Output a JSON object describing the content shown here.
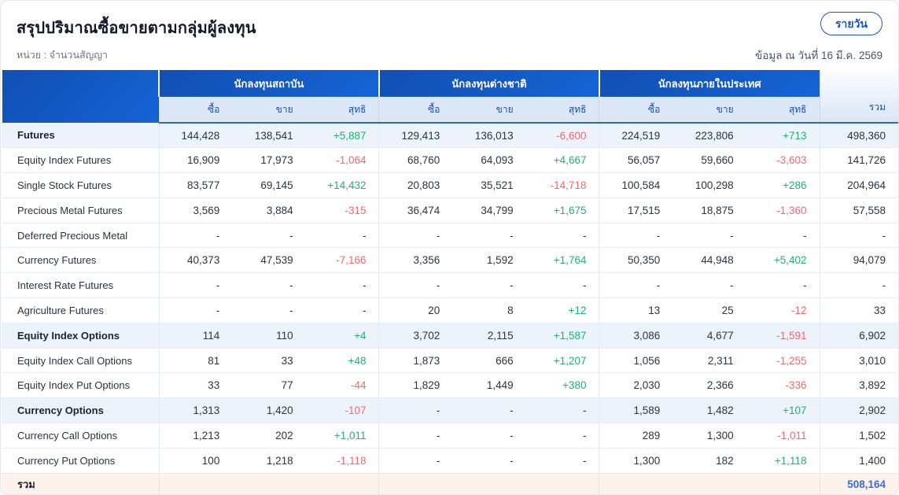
{
  "page": {
    "title": "สรุปปริมาณซื้อขายตามกลุ่มผู้ลงทุน",
    "unit_label": "หน่วย : จำนวนสัญญา",
    "as_of": "ข้อมูล ณ วันที่ 16 มี.ค. 2569",
    "period_button": "รายวัน"
  },
  "colors": {
    "header_blue": "#1258c4",
    "subheader_bg": "#dce8f7",
    "subheader_text": "#1e4fa3",
    "positive": "#21b273",
    "negative": "#f0696e",
    "highlight_row": "#edf3fb",
    "footer_bg": "#fdf3ec",
    "grand_total_text": "#3a6bd8",
    "button_blue": "#1a56c4"
  },
  "table": {
    "groups": [
      {
        "label": "นักลงทุนสถาบัน"
      },
      {
        "label": "นักลงทุนต่างชาติ"
      },
      {
        "label": "นักลงทุนภายในประเทศ"
      }
    ],
    "sub_headers": [
      "ซื้อ",
      "ขาย",
      "สุทธิ"
    ],
    "total_header": "รวม",
    "rows": [
      {
        "label": "Futures",
        "highlight": true,
        "cells": [
          "144,428",
          "138,541",
          "+5,887",
          "129,413",
          "136,013",
          "-6,600",
          "224,519",
          "223,806",
          "+713"
        ],
        "total": "498,360"
      },
      {
        "label": "Equity Index Futures",
        "highlight": false,
        "cells": [
          "16,909",
          "17,973",
          "-1,064",
          "68,760",
          "64,093",
          "+4,667",
          "56,057",
          "59,660",
          "-3,603"
        ],
        "total": "141,726"
      },
      {
        "label": "Single Stock Futures",
        "highlight": false,
        "cells": [
          "83,577",
          "69,145",
          "+14,432",
          "20,803",
          "35,521",
          "-14,718",
          "100,584",
          "100,298",
          "+286"
        ],
        "total": "204,964"
      },
      {
        "label": "Precious Metal Futures",
        "highlight": false,
        "cells": [
          "3,569",
          "3,884",
          "-315",
          "36,474",
          "34,799",
          "+1,675",
          "17,515",
          "18,875",
          "-1,360"
        ],
        "total": "57,558"
      },
      {
        "label": "Deferred Precious Metal",
        "highlight": false,
        "cells": [
          "-",
          "-",
          "-",
          "-",
          "-",
          "-",
          "-",
          "-",
          "-"
        ],
        "total": "-"
      },
      {
        "label": "Currency Futures",
        "highlight": false,
        "cells": [
          "40,373",
          "47,539",
          "-7,166",
          "3,356",
          "1,592",
          "+1,764",
          "50,350",
          "44,948",
          "+5,402"
        ],
        "total": "94,079"
      },
      {
        "label": "Interest Rate Futures",
        "highlight": false,
        "cells": [
          "-",
          "-",
          "-",
          "-",
          "-",
          "-",
          "-",
          "-",
          "-"
        ],
        "total": "-"
      },
      {
        "label": "Agriculture Futures",
        "highlight": false,
        "cells": [
          "-",
          "-",
          "-",
          "20",
          "8",
          "+12",
          "13",
          "25",
          "-12"
        ],
        "total": "33"
      },
      {
        "label": "Equity Index Options",
        "highlight": true,
        "cells": [
          "114",
          "110",
          "+4",
          "3,702",
          "2,115",
          "+1,587",
          "3,086",
          "4,677",
          "-1,591"
        ],
        "total": "6,902"
      },
      {
        "label": "Equity Index Call Options",
        "highlight": false,
        "cells": [
          "81",
          "33",
          "+48",
          "1,873",
          "666",
          "+1,207",
          "1,056",
          "2,311",
          "-1,255"
        ],
        "total": "3,010"
      },
      {
        "label": "Equity Index Put Options",
        "highlight": false,
        "cells": [
          "33",
          "77",
          "-44",
          "1,829",
          "1,449",
          "+380",
          "2,030",
          "2,366",
          "-336"
        ],
        "total": "3,892"
      },
      {
        "label": "Currency Options",
        "highlight": true,
        "cells": [
          "1,313",
          "1,420",
          "-107",
          "-",
          "-",
          "-",
          "1,589",
          "1,482",
          "+107"
        ],
        "total": "2,902"
      },
      {
        "label": "Currency Call Options",
        "highlight": false,
        "cells": [
          "1,213",
          "202",
          "+1,011",
          "-",
          "-",
          "-",
          "289",
          "1,300",
          "-1,011"
        ],
        "total": "1,502"
      },
      {
        "label": "Currency Put Options",
        "highlight": false,
        "cells": [
          "100",
          "1,218",
          "-1,118",
          "-",
          "-",
          "-",
          "1,300",
          "182",
          "+1,118"
        ],
        "total": "1,400"
      }
    ],
    "footer": {
      "label": "รวม",
      "total": "508,164"
    }
  }
}
